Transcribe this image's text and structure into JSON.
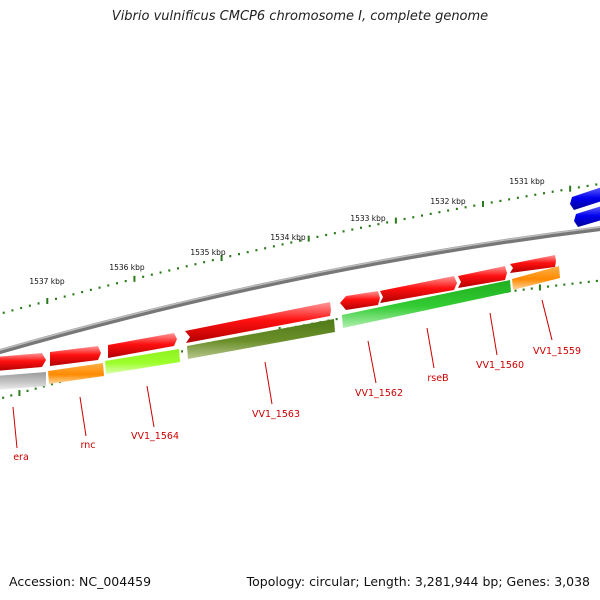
{
  "title": "Vibrio vulnificus CMCP6 chromosome I, complete genome",
  "footer": {
    "accession": "Accession: NC_004459",
    "summary": "Topology: circular; Length: 3,281,944 bp; Genes: 3,038"
  },
  "colors": {
    "backbone": "#8a8a8a",
    "ruler": "#2a7a1a",
    "label": "#cc0000"
  },
  "ruler_labels": [
    "1537 kbp",
    "1536 kbp",
    "1535 kbp",
    "1534 kbp",
    "1533 kbp",
    "1532 kbp",
    "1531 kbp"
  ],
  "gene_labels": [
    "era",
    "rnc",
    "VV1_1564",
    "VV1_1563",
    "VV1_1562",
    "rseB",
    "VV1_1560",
    "VV1_1559"
  ]
}
